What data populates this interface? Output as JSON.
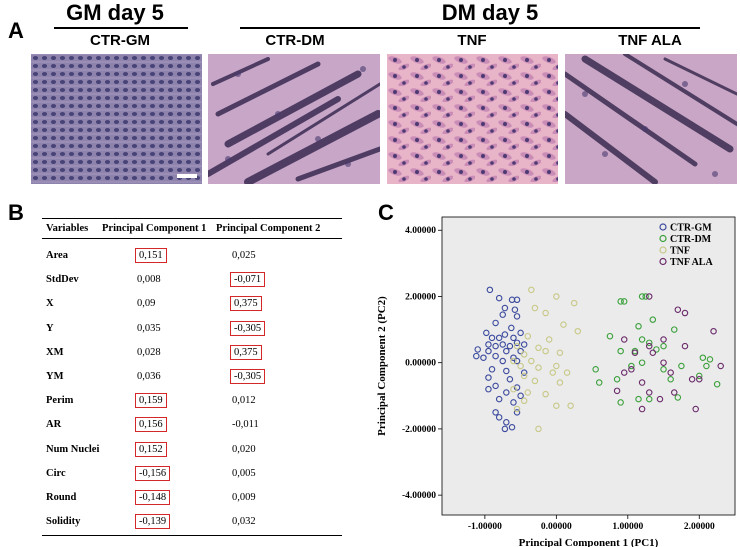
{
  "panel_a": {
    "letter": "A",
    "gm_header": "GM day 5",
    "dm_header": "DM day 5",
    "images": [
      {
        "label": "CTR-GM",
        "kind": "dense-cells"
      },
      {
        "label": "CTR-DM",
        "kind": "myotubes"
      },
      {
        "label": "TNF",
        "kind": "spread-cells"
      },
      {
        "label": "TNF ALA",
        "kind": "myotubes"
      }
    ]
  },
  "panel_b": {
    "letter": "B",
    "columns": [
      "Variables",
      "Principal Component 1",
      "Principal Component 2"
    ],
    "rows": [
      {
        "var": "Area",
        "pc1": "0,151",
        "pc2": "0,025",
        "box1": true,
        "box2": false
      },
      {
        "var": "StdDev",
        "pc1": "0,008",
        "pc2": "-0,071",
        "box1": false,
        "box2": true
      },
      {
        "var": "X",
        "pc1": "0,09",
        "pc2": "0,375",
        "box1": false,
        "box2": true
      },
      {
        "var": "Y",
        "pc1": "0,035",
        "pc2": "-0,305",
        "box1": false,
        "box2": true
      },
      {
        "var": "XM",
        "pc1": "0,028",
        "pc2": "0,375",
        "box1": false,
        "box2": true
      },
      {
        "var": "YM",
        "pc1": "0,036",
        "pc2": "-0,305",
        "box1": false,
        "box2": true
      },
      {
        "var": "Perim",
        "pc1": "0,159",
        "pc2": "0,012",
        "box1": true,
        "box2": false
      },
      {
        "var": "AR",
        "pc1": "0,156",
        "pc2": "-0,011",
        "box1": true,
        "box2": false
      },
      {
        "var": "Num Nuclei",
        "pc1": "0,152",
        "pc2": "0,020",
        "box1": true,
        "box2": false
      },
      {
        "var": "Circ",
        "pc1": "-0,156",
        "pc2": "0,005",
        "box1": true,
        "box2": false
      },
      {
        "var": "Round",
        "pc1": "-0,148",
        "pc2": "0,009",
        "box1": true,
        "box2": false
      },
      {
        "var": "Solidity",
        "pc1": "-0,139",
        "pc2": "0,032",
        "box1": true,
        "box2": false
      }
    ],
    "box_color": "#d62728"
  },
  "panel_c": {
    "letter": "C"
  },
  "chart_data": {
    "type": "scatter",
    "title": "",
    "xlabel": "Principal Component 1 (PC1)",
    "ylabel": "Principal Component 2 (PC2)",
    "xlim": [
      -1.6,
      2.5
    ],
    "ylim": [
      -4.6,
      4.4
    ],
    "xticks": [
      -1.0,
      0.0,
      1.0,
      2.0
    ],
    "xtick_labels": [
      "-1.00000",
      "0.00000",
      "1.00000",
      "2.00000"
    ],
    "yticks": [
      -4.0,
      -2.0,
      0.0,
      2.0,
      4.0
    ],
    "ytick_labels": [
      "-4.00000",
      "-2.00000",
      "0.00000",
      "2.00000",
      "4.00000"
    ],
    "legend_position": "top-right",
    "series": [
      {
        "name": "CTR-GM",
        "color": "#3b4a9e",
        "points": [
          [
            -0.93,
            2.2
          ],
          [
            -0.8,
            1.95
          ],
          [
            -0.62,
            1.9
          ],
          [
            -0.55,
            1.9
          ],
          [
            -0.72,
            1.65
          ],
          [
            -0.58,
            1.6
          ],
          [
            -0.75,
            1.45
          ],
          [
            -0.55,
            1.4
          ],
          [
            -0.85,
            1.2
          ],
          [
            -0.63,
            1.05
          ],
          [
            -0.98,
            0.9
          ],
          [
            -0.72,
            0.85
          ],
          [
            -0.5,
            0.9
          ],
          [
            -0.9,
            0.75
          ],
          [
            -0.8,
            0.75
          ],
          [
            -0.6,
            0.75
          ],
          [
            -0.95,
            0.55
          ],
          [
            -0.75,
            0.55
          ],
          [
            -0.55,
            0.6
          ],
          [
            -0.85,
            0.5
          ],
          [
            -0.65,
            0.5
          ],
          [
            -0.45,
            0.55
          ],
          [
            -1.1,
            0.4
          ],
          [
            -0.95,
            0.35
          ],
          [
            -0.7,
            0.35
          ],
          [
            -0.5,
            0.35
          ],
          [
            -1.12,
            0.2
          ],
          [
            -0.85,
            0.2
          ],
          [
            -0.6,
            0.15
          ],
          [
            -1.02,
            0.15
          ],
          [
            -0.75,
            0.05
          ],
          [
            -0.55,
            0.05
          ],
          [
            -0.9,
            -0.2
          ],
          [
            -0.7,
            -0.25
          ],
          [
            -0.45,
            -0.3
          ],
          [
            -0.95,
            -0.45
          ],
          [
            -0.65,
            -0.5
          ],
          [
            -0.85,
            -0.7
          ],
          [
            -0.55,
            -0.75
          ],
          [
            -0.95,
            -0.8
          ],
          [
            -0.7,
            -0.9
          ],
          [
            -0.5,
            -1.0
          ],
          [
            -0.8,
            -1.1
          ],
          [
            -0.6,
            -1.2
          ],
          [
            -0.85,
            -1.5
          ],
          [
            -0.55,
            -1.5
          ],
          [
            -0.8,
            -1.65
          ],
          [
            -0.7,
            -1.8
          ],
          [
            -0.62,
            -1.95
          ],
          [
            -0.72,
            -2.0
          ]
        ]
      },
      {
        "name": "CTR-DM",
        "color": "#3aa03a",
        "points": [
          [
            0.9,
            1.85
          ],
          [
            0.95,
            1.85
          ],
          [
            1.2,
            2.0
          ],
          [
            1.25,
            2.0
          ],
          [
            1.15,
            1.1
          ],
          [
            1.35,
            1.3
          ],
          [
            1.65,
            1.0
          ],
          [
            0.75,
            0.8
          ],
          [
            1.2,
            0.7
          ],
          [
            1.3,
            0.6
          ],
          [
            1.5,
            0.5
          ],
          [
            0.9,
            0.35
          ],
          [
            1.1,
            0.35
          ],
          [
            1.4,
            0.4
          ],
          [
            2.05,
            0.15
          ],
          [
            2.15,
            0.1
          ],
          [
            1.2,
            0.0
          ],
          [
            0.55,
            -0.2
          ],
          [
            1.05,
            -0.1
          ],
          [
            1.75,
            -0.1
          ],
          [
            2.1,
            -0.1
          ],
          [
            1.5,
            -0.2
          ],
          [
            0.6,
            -0.6
          ],
          [
            0.85,
            -0.5
          ],
          [
            1.6,
            -0.5
          ],
          [
            2.0,
            -0.4
          ],
          [
            2.25,
            -0.65
          ],
          [
            1.15,
            -1.1
          ],
          [
            0.9,
            -1.2
          ],
          [
            1.3,
            -1.1
          ],
          [
            1.7,
            -1.05
          ]
        ]
      },
      {
        "name": "TNF",
        "color": "#c8c887",
        "points": [
          [
            -0.35,
            2.2
          ],
          [
            0.0,
            2.0
          ],
          [
            -0.3,
            1.65
          ],
          [
            0.25,
            1.8
          ],
          [
            -0.15,
            1.5
          ],
          [
            0.1,
            1.15
          ],
          [
            0.3,
            0.95
          ],
          [
            -0.4,
            0.8
          ],
          [
            -0.1,
            0.7
          ],
          [
            -0.55,
            0.5
          ],
          [
            -0.25,
            0.45
          ],
          [
            -0.45,
            0.25
          ],
          [
            -0.15,
            0.35
          ],
          [
            0.05,
            0.3
          ],
          [
            -0.6,
            0.05
          ],
          [
            -0.35,
            0.05
          ],
          [
            -0.5,
            -0.1
          ],
          [
            -0.25,
            -0.15
          ],
          [
            0.0,
            -0.1
          ],
          [
            -0.05,
            -0.3
          ],
          [
            0.15,
            -0.3
          ],
          [
            -0.45,
            -0.4
          ],
          [
            -0.3,
            -0.55
          ],
          [
            0.05,
            -0.6
          ],
          [
            -0.6,
            -0.8
          ],
          [
            -0.4,
            -0.9
          ],
          [
            -0.15,
            -0.95
          ],
          [
            -0.45,
            -1.15
          ],
          [
            0.0,
            -1.3
          ],
          [
            0.2,
            -1.3
          ],
          [
            -0.55,
            -1.4
          ],
          [
            -0.25,
            -2.0
          ]
        ]
      },
      {
        "name": "TNF ALA",
        "color": "#6a2a6a",
        "points": [
          [
            1.3,
            2.0
          ],
          [
            1.7,
            1.6
          ],
          [
            1.8,
            1.5
          ],
          [
            2.2,
            0.95
          ],
          [
            0.95,
            0.7
          ],
          [
            1.5,
            0.7
          ],
          [
            1.8,
            0.5
          ],
          [
            1.3,
            0.5
          ],
          [
            1.1,
            0.3
          ],
          [
            1.35,
            0.3
          ],
          [
            1.5,
            0.0
          ],
          [
            1.05,
            -0.2
          ],
          [
            0.95,
            -0.3
          ],
          [
            1.6,
            -0.3
          ],
          [
            1.2,
            -0.6
          ],
          [
            2.3,
            -0.1
          ],
          [
            0.85,
            -0.85
          ],
          [
            1.3,
            -0.9
          ],
          [
            1.65,
            -0.9
          ],
          [
            1.9,
            -0.5
          ],
          [
            2.0,
            -0.5
          ],
          [
            1.2,
            -1.4
          ],
          [
            1.45,
            -1.1
          ],
          [
            1.95,
            -1.4
          ]
        ]
      }
    ]
  }
}
